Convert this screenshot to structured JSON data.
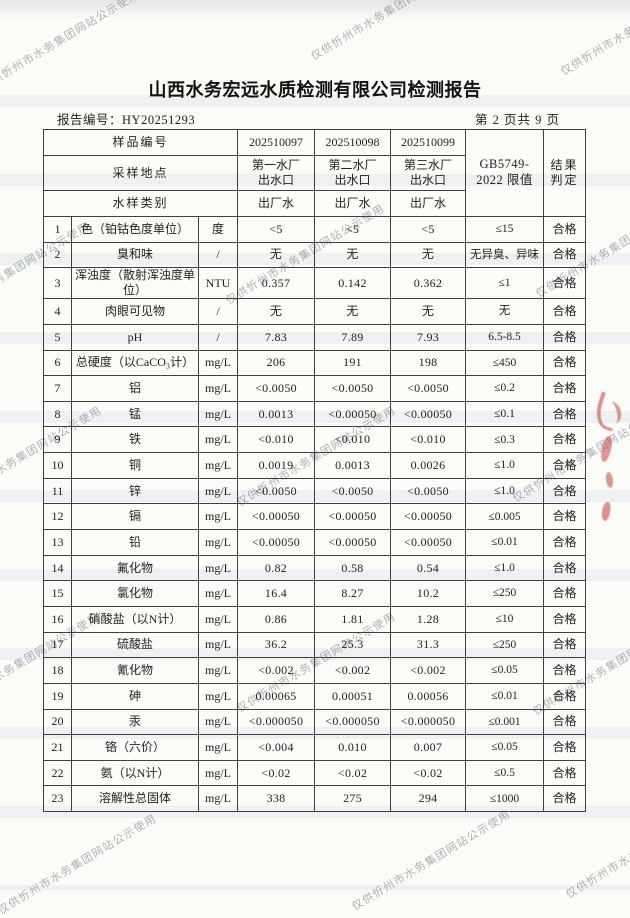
{
  "document": {
    "title": "山西水务宏远水质检测有限公司检测报告",
    "report_no_label": "报告编号：",
    "report_no": "HY20251293",
    "page_indicator": "第 2 页共 9 页"
  },
  "watermark_text": "仅供忻州市水务集团网站公示使用",
  "table": {
    "header": {
      "sample_no_label": "样品编号",
      "sample_ids": [
        "202510097",
        "202510098",
        "202510099"
      ],
      "location_label": "采样地点",
      "locations": [
        "第一水厂\n出水口",
        "第二水厂\n出水口",
        "第三水厂\n出水口"
      ],
      "type_label": "水样类别",
      "types": [
        "出厂水",
        "出厂水",
        "出厂水"
      ],
      "limit_header": "GB5749-\n2022 限值",
      "result_header": "结果\n判定"
    },
    "rows": [
      {
        "no": "1",
        "item": "色（铂钴色度单位）",
        "unit": "度",
        "v": [
          "<5",
          "<5",
          "<5"
        ],
        "limit": "≤15",
        "result": "合格"
      },
      {
        "no": "2",
        "item": "臭和味",
        "unit": "/",
        "v": [
          "无",
          "无",
          "无"
        ],
        "limit": "无异臭、异味",
        "result": "合格"
      },
      {
        "no": "3",
        "item": "浑浊度（散射浑浊度单位）",
        "unit": "NTU",
        "v": [
          "0.357",
          "0.142",
          "0.362"
        ],
        "limit": "≤1",
        "result": "合格"
      },
      {
        "no": "4",
        "item": "肉眼可见物",
        "unit": "/",
        "v": [
          "无",
          "无",
          "无"
        ],
        "limit": "无",
        "result": "合格"
      },
      {
        "no": "5",
        "item": "pH",
        "unit": "/",
        "v": [
          "7.83",
          "7.89",
          "7.93"
        ],
        "limit": "6.5-8.5",
        "result": "合格"
      },
      {
        "no": "6",
        "item": "总硬度（以CaCO₃计）",
        "unit": "mg/L",
        "v": [
          "206",
          "191",
          "198"
        ],
        "limit": "≤450",
        "result": "合格"
      },
      {
        "no": "7",
        "item": "铝",
        "unit": "mg/L",
        "v": [
          "<0.0050",
          "<0.0050",
          "<0.0050"
        ],
        "limit": "≤0.2",
        "result": "合格"
      },
      {
        "no": "8",
        "item": "锰",
        "unit": "mg/L",
        "v": [
          "0.0013",
          "<0.00050",
          "<0.00050"
        ],
        "limit": "≤0.1",
        "result": "合格"
      },
      {
        "no": "9",
        "item": "铁",
        "unit": "mg/L",
        "v": [
          "<0.010",
          "<0.010",
          "<0.010"
        ],
        "limit": "≤0.3",
        "result": "合格"
      },
      {
        "no": "10",
        "item": "铜",
        "unit": "mg/L",
        "v": [
          "0.0019",
          "0.0013",
          "0.0026"
        ],
        "limit": "≤1.0",
        "result": "合格"
      },
      {
        "no": "11",
        "item": "锌",
        "unit": "mg/L",
        "v": [
          "<0.0050",
          "<0.0050",
          "<0.0050"
        ],
        "limit": "≤1.0",
        "result": "合格"
      },
      {
        "no": "12",
        "item": "镉",
        "unit": "mg/L",
        "v": [
          "<0.00050",
          "<0.00050",
          "<0.00050"
        ],
        "limit": "≤0.005",
        "result": "合格"
      },
      {
        "no": "13",
        "item": "铅",
        "unit": "mg/L",
        "v": [
          "<0.00050",
          "<0.00050",
          "<0.00050"
        ],
        "limit": "≤0.01",
        "result": "合格"
      },
      {
        "no": "14",
        "item": "氟化物",
        "unit": "mg/L",
        "v": [
          "0.82",
          "0.58",
          "0.54"
        ],
        "limit": "≤1.0",
        "result": "合格"
      },
      {
        "no": "15",
        "item": "氯化物",
        "unit": "mg/L",
        "v": [
          "16.4",
          "8.27",
          "10.2"
        ],
        "limit": "≤250",
        "result": "合格"
      },
      {
        "no": "16",
        "item": "硝酸盐（以N计）",
        "unit": "mg/L",
        "v": [
          "0.86",
          "1.81",
          "1.28"
        ],
        "limit": "≤10",
        "result": "合格"
      },
      {
        "no": "17",
        "item": "硫酸盐",
        "unit": "mg/L",
        "v": [
          "36.2",
          "25.3",
          "31.3"
        ],
        "limit": "≤250",
        "result": "合格"
      },
      {
        "no": "18",
        "item": "氰化物",
        "unit": "mg/L",
        "v": [
          "<0.002",
          "<0.002",
          "<0.002"
        ],
        "limit": "≤0.05",
        "result": "合格"
      },
      {
        "no": "19",
        "item": "砷",
        "unit": "mg/L",
        "v": [
          "0.00065",
          "0.00051",
          "0.00056"
        ],
        "limit": "≤0.01",
        "result": "合格"
      },
      {
        "no": "20",
        "item": "汞",
        "unit": "mg/L",
        "v": [
          "<0.000050",
          "<0.000050",
          "<0.000050"
        ],
        "limit": "≤0.001",
        "result": "合格"
      },
      {
        "no": "21",
        "item": "铬（六价）",
        "unit": "mg/L",
        "v": [
          "<0.004",
          "0.010",
          "0.007"
        ],
        "limit": "≤0.05",
        "result": "合格"
      },
      {
        "no": "22",
        "item": "氨（以N计）",
        "unit": "mg/L",
        "v": [
          "<0.02",
          "<0.02",
          "<0.02"
        ],
        "limit": "≤0.5",
        "result": "合格"
      },
      {
        "no": "23",
        "item": "溶解性总固体",
        "unit": "mg/L",
        "v": [
          "338",
          "275",
          "294"
        ],
        "limit": "≤1000",
        "result": "合格"
      }
    ]
  }
}
